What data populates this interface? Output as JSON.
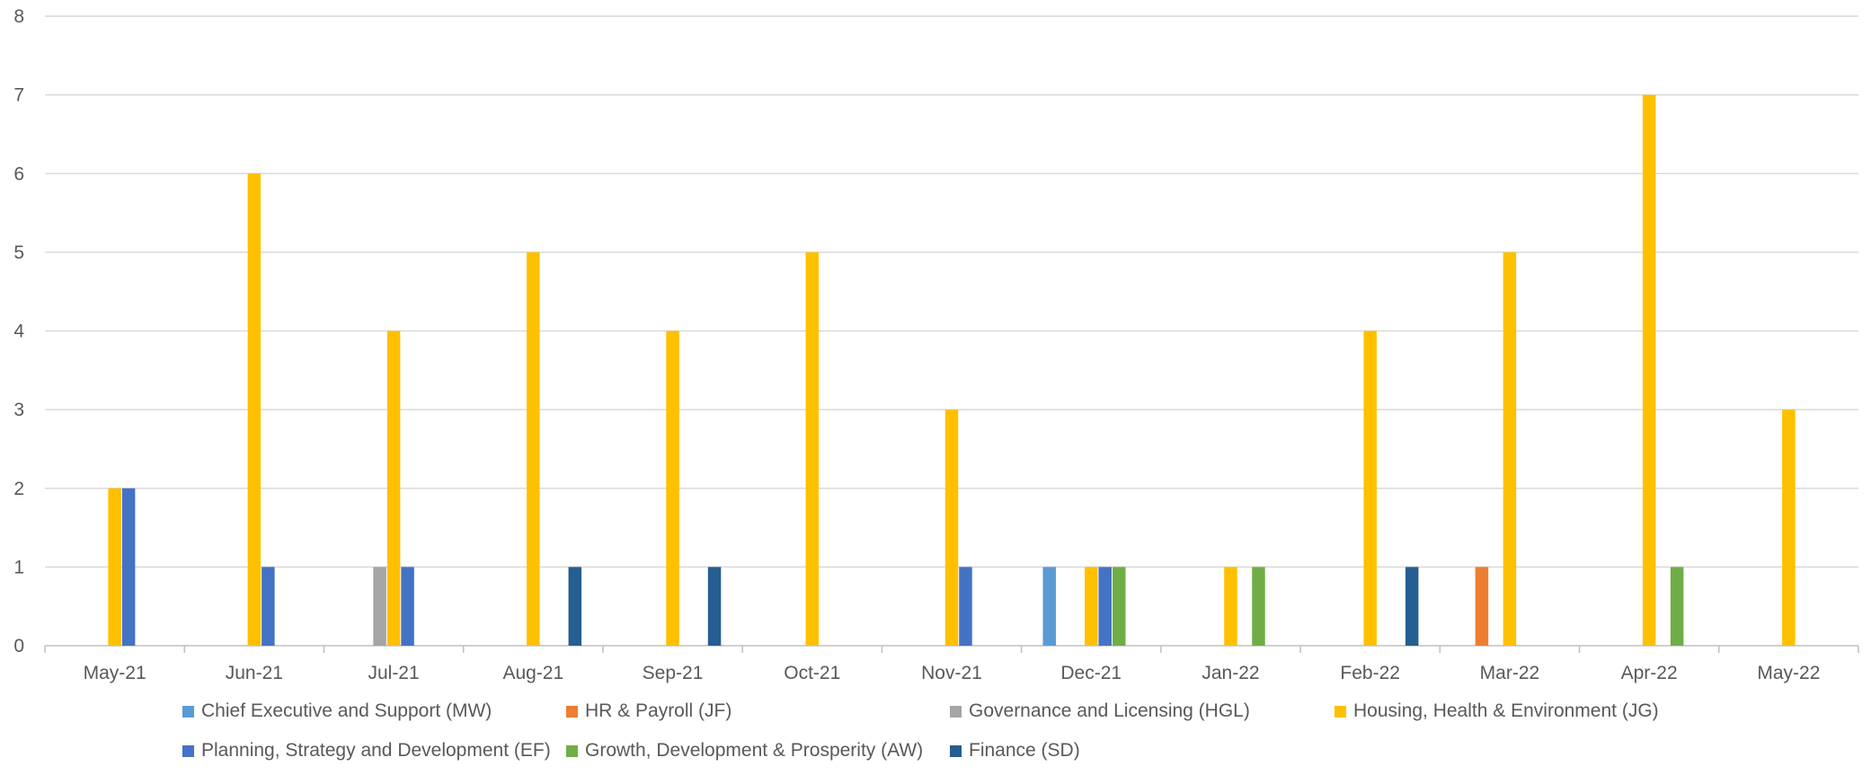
{
  "chart_data": {
    "type": "bar",
    "title": "",
    "xlabel": "",
    "ylabel": "",
    "ylim": [
      0,
      8
    ],
    "yticks": [
      0,
      1,
      2,
      3,
      4,
      5,
      6,
      7,
      8
    ],
    "grid": true,
    "legend_position": "bottom",
    "categories": [
      "May-21",
      "Jun-21",
      "Jul-21",
      "Aug-21",
      "Sep-21",
      "Oct-21",
      "Nov-21",
      "Dec-21",
      "Jan-22",
      "Feb-22",
      "Mar-22",
      "Apr-22",
      "May-22"
    ],
    "series": [
      {
        "name": "Chief Executive and Support (MW)",
        "color": "#5B9BD5",
        "values": [
          0,
          0,
          0,
          0,
          0,
          0,
          0,
          1,
          0,
          0,
          0,
          0,
          0
        ]
      },
      {
        "name": "HR & Payroll (JF)",
        "color": "#ED7D31",
        "values": [
          0,
          0,
          0,
          0,
          0,
          0,
          0,
          0,
          0,
          0,
          1,
          0,
          0
        ]
      },
      {
        "name": "Governance and Licensing (HGL)",
        "color": "#A5A5A5",
        "values": [
          0,
          0,
          1,
          0,
          0,
          0,
          0,
          0,
          0,
          0,
          0,
          0,
          0
        ]
      },
      {
        "name": "Housing, Health & Environment (JG)",
        "color": "#FFC000",
        "values": [
          2,
          6,
          4,
          5,
          4,
          5,
          3,
          1,
          1,
          4,
          5,
          7,
          3
        ]
      },
      {
        "name": "Planning, Strategy and Development (EF)",
        "color": "#4472C4",
        "values": [
          2,
          1,
          1,
          0,
          0,
          0,
          1,
          1,
          0,
          0,
          0,
          0,
          0
        ]
      },
      {
        "name": "Growth, Development & Prosperity (AW)",
        "color": "#70AD47",
        "values": [
          0,
          0,
          0,
          0,
          0,
          0,
          0,
          1,
          1,
          0,
          0,
          1,
          0
        ]
      },
      {
        "name": "Finance (SD)",
        "color": "#255E91",
        "values": [
          0,
          0,
          0,
          1,
          1,
          0,
          0,
          0,
          0,
          1,
          0,
          0,
          0
        ]
      }
    ]
  }
}
